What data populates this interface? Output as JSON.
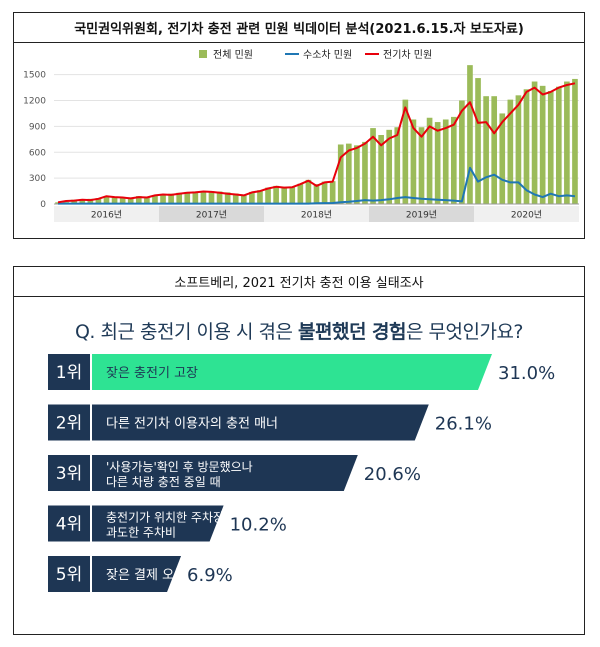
{
  "top_panel": {
    "title": "국민권익위원회, 전기차 충전 관련 민원 빅데이터 분석(2021.6.15.자 보도자료)"
  },
  "bottom_panel": {
    "title": "소프트베리, 2021 전기차 충전 이용 실태조사",
    "question_prefix": "Q. 최근 충전기 이용 시 겪은 ",
    "question_emphasis": "불편했던 경험",
    "question_suffix": "은 무엇인가요?"
  },
  "chart_data": [
    {
      "type": "bar+line",
      "title": "",
      "ylim": [
        0,
        1600
      ],
      "yticks": [
        0,
        300,
        600,
        900,
        1200,
        1500
      ],
      "year_labels": [
        "2016년",
        "2017년",
        "2018년",
        "2019년",
        "2020년"
      ],
      "legend_position": "top-right",
      "colors": {
        "bar": "#9bbb59",
        "hydrogen": "#1f77b4",
        "ev": "#e8000b"
      },
      "series": [
        {
          "name": "전체 민원",
          "kind": "bar",
          "values": [
            20,
            22,
            50,
            58,
            60,
            68,
            90,
            82,
            78,
            72,
            92,
            84,
            102,
            112,
            120,
            130,
            140,
            146,
            148,
            150,
            145,
            135,
            122,
            108,
            140,
            160,
            190,
            210,
            200,
            200,
            235,
            280,
            230,
            260,
            265,
            690,
            700,
            680,
            720,
            880,
            800,
            860,
            890,
            1210,
            980,
            890,
            1000,
            950,
            980,
            1010,
            1200,
            1610,
            1460,
            1250,
            1250,
            1050,
            1210,
            1260,
            1330,
            1420,
            1370,
            1310,
            1360,
            1420,
            1450
          ]
        },
        {
          "name": "수소차 민원",
          "kind": "line",
          "values": [
            5,
            5,
            5,
            5,
            5,
            5,
            5,
            5,
            5,
            5,
            5,
            5,
            5,
            5,
            5,
            5,
            5,
            5,
            5,
            5,
            5,
            5,
            5,
            5,
            5,
            5,
            5,
            5,
            5,
            5,
            5,
            5,
            8,
            10,
            12,
            20,
            25,
            35,
            45,
            40,
            45,
            55,
            70,
            80,
            70,
            60,
            55,
            50,
            45,
            40,
            30,
            420,
            260,
            310,
            340,
            280,
            250,
            250,
            160,
            110,
            80,
            120,
            90,
            100,
            90
          ]
        },
        {
          "name": "전기차 민원",
          "kind": "line",
          "values": [
            20,
            35,
            40,
            50,
            45,
            60,
            90,
            80,
            75,
            65,
            80,
            75,
            100,
            110,
            105,
            120,
            130,
            135,
            145,
            140,
            130,
            120,
            110,
            100,
            135,
            150,
            180,
            200,
            190,
            195,
            230,
            270,
            210,
            250,
            260,
            540,
            620,
            650,
            700,
            780,
            680,
            760,
            800,
            1120,
            880,
            780,
            900,
            850,
            880,
            920,
            1080,
            1180,
            940,
            950,
            820,
            950,
            1050,
            1150,
            1300,
            1350,
            1270,
            1300,
            1350,
            1380,
            1400
          ]
        }
      ]
    },
    {
      "type": "bar",
      "orientation": "horizontal",
      "title": "",
      "unit": "%",
      "colors": {
        "highlight": "#2ee393",
        "default": "#1e3654",
        "rank_box": "#1e3654"
      },
      "categories": [
        "잦은 충전기 고장",
        "다른 전기차 이용자의 충전 매너",
        "'사용가능'확인 후 방문했으나 다른 차량 충전 중일 때",
        "충전기가 위치한 주차장의 과도한 주차비",
        "잦은 결제 오류"
      ],
      "category_lines": [
        [
          "잦은 충전기 고장"
        ],
        [
          "다른 전기차 이용자의 충전 매너"
        ],
        [
          "'사용가능'확인 후 방문했으나",
          "다른 차량 충전 중일 때"
        ],
        [
          "충전기가 위치한 주차장의",
          "과도한 주차비"
        ],
        [
          "잦은 결제 오류"
        ]
      ],
      "ranks": [
        "1위",
        "2위",
        "3위",
        "4위",
        "5위"
      ],
      "values": [
        31.0,
        26.1,
        20.6,
        10.2,
        6.9
      ],
      "value_labels": [
        "31.0%",
        "26.1%",
        "20.6%",
        "10.2%",
        "6.9%"
      ]
    }
  ]
}
